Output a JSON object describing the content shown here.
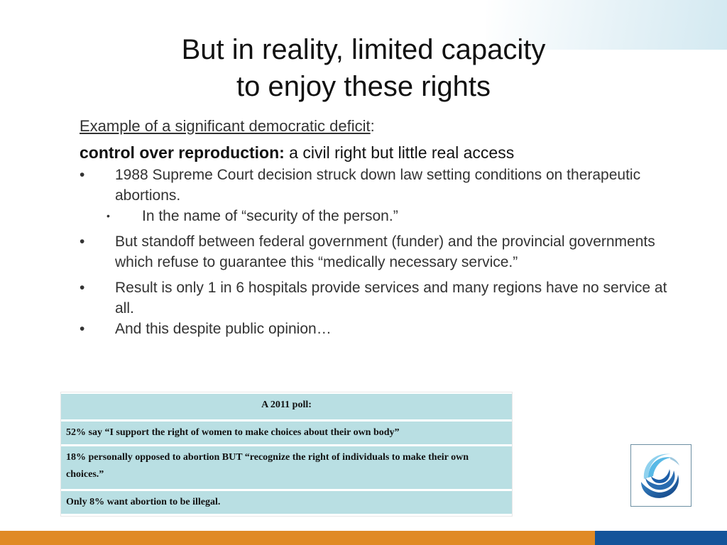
{
  "slide": {
    "title_line1": "But in reality, limited capacity",
    "title_line2": "to enjoy these rights",
    "example_label": "Example of a significant democratic deficit",
    "example_suffix": ":",
    "control_bold": "control over reproduction:",
    "control_rest": " a civil right but little real access",
    "bullets": [
      "1988 Supreme Court decision struck down law setting conditions on therapeutic abortions.",
      "In the name of “security of the person.”",
      "But standoff between federal government (funder) and the provincial governments which refuse to guarantee this  “medically necessary service.”",
      "Result is only 1 in 6 hospitals provide services and many regions have no service at all.",
      "And this despite public opinion…"
    ],
    "bullet_glyph": "•"
  },
  "poll": {
    "header": "A 2011 poll:",
    "rows": [
      "52% say “I support the right of women to make choices about their own body”",
      "18% personally opposed to abortion BUT “recognize the right of individuals to make their own choices.”",
      "Only 8% want abortion to be illegal."
    ]
  },
  "logo": {
    "icon": "globe-swirl-icon"
  },
  "colors": {
    "accent_orange": "#e08a25",
    "accent_blue": "#14549a",
    "table_fill": "#b9dfe3"
  }
}
